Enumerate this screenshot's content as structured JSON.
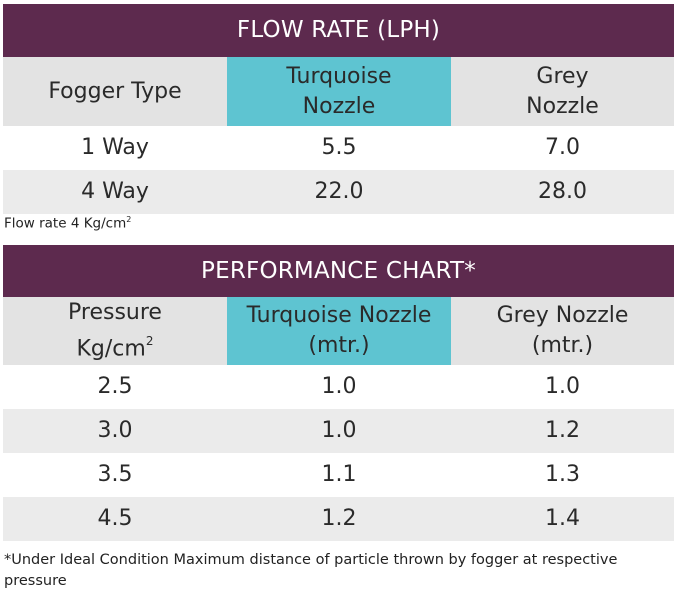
{
  "flow_table": {
    "title": "FLOW RATE (LPH)",
    "headers": [
      "Fogger Type",
      "Turquoise Nozzle",
      "Grey Nozzle"
    ],
    "header_lines": [
      [
        "Fogger Type"
      ],
      [
        "Turquoise",
        "Nozzle"
      ],
      [
        "Grey",
        "Nozzle"
      ]
    ],
    "rows": [
      [
        "1 Way",
        "5.5",
        "7.0"
      ],
      [
        "4 Way",
        "22.0",
        "28.0"
      ]
    ]
  },
  "flow_note": {
    "text": "Flow rate 4 Kg/cm",
    "superscript": "2"
  },
  "performance_table": {
    "title": "PERFORMANCE CHART*",
    "header_lines": [
      [
        "Pressure",
        "Kg/cm"
      ],
      [
        "Turquoise Nozzle",
        "(mtr.)"
      ],
      [
        "Grey Nozzle",
        "(mtr.)"
      ]
    ],
    "pressure_unit_superscript": "2",
    "rows": [
      [
        "2.5",
        "1.0",
        "1.0"
      ],
      [
        "3.0",
        "1.0",
        "1.2"
      ],
      [
        "3.5",
        "1.1",
        "1.3"
      ],
      [
        "4.5",
        "1.2",
        "1.4"
      ]
    ]
  },
  "footnote": "*Under Ideal Condition Maximum distance of particle thrown by fogger at respective pressure",
  "colors": {
    "title_bar": "#5d2a4e",
    "turquoise_header": "#5ec4d1",
    "header_grey": "#e3e3e3",
    "row_grey": "#ebebeb"
  }
}
